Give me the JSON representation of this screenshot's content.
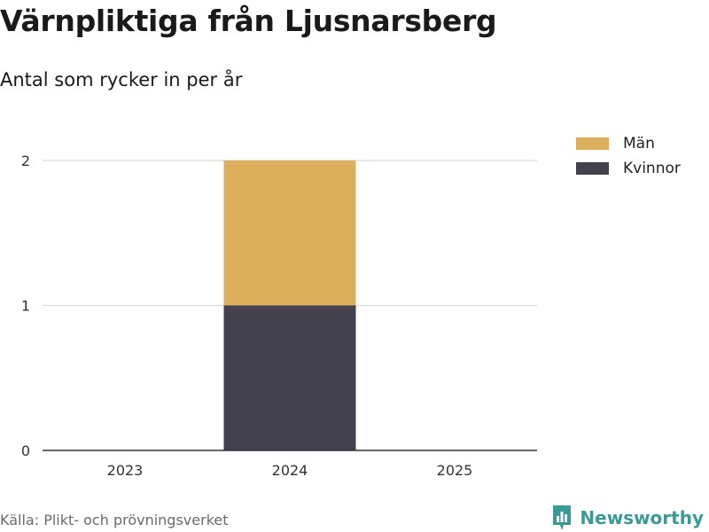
{
  "title": "Värnpliktiga från Ljusnarsberg",
  "subtitle": "Antal som rycker in per år",
  "source": "Källa: Plikt- och prövningsverket",
  "brand": {
    "name": "Newsworthy",
    "icon": "bar-chart-logo-icon",
    "color": "#3a9b94"
  },
  "chart_data": {
    "type": "bar",
    "stacked": true,
    "categories": [
      "2023",
      "2024",
      "2025"
    ],
    "series": [
      {
        "name": "Kvinnor",
        "color": "#42414d",
        "values": [
          0,
          1,
          0
        ]
      },
      {
        "name": "Män",
        "color": "#dbaf5b",
        "values": [
          0,
          1,
          0
        ]
      }
    ],
    "legend": [
      {
        "name": "Män",
        "color": "#dbaf5b"
      },
      {
        "name": "Kvinnor",
        "color": "#42414d"
      }
    ],
    "yticks": [
      "0",
      "1",
      "2"
    ],
    "ylim": [
      0,
      2
    ],
    "grid": true,
    "legend_position": "top-right"
  }
}
